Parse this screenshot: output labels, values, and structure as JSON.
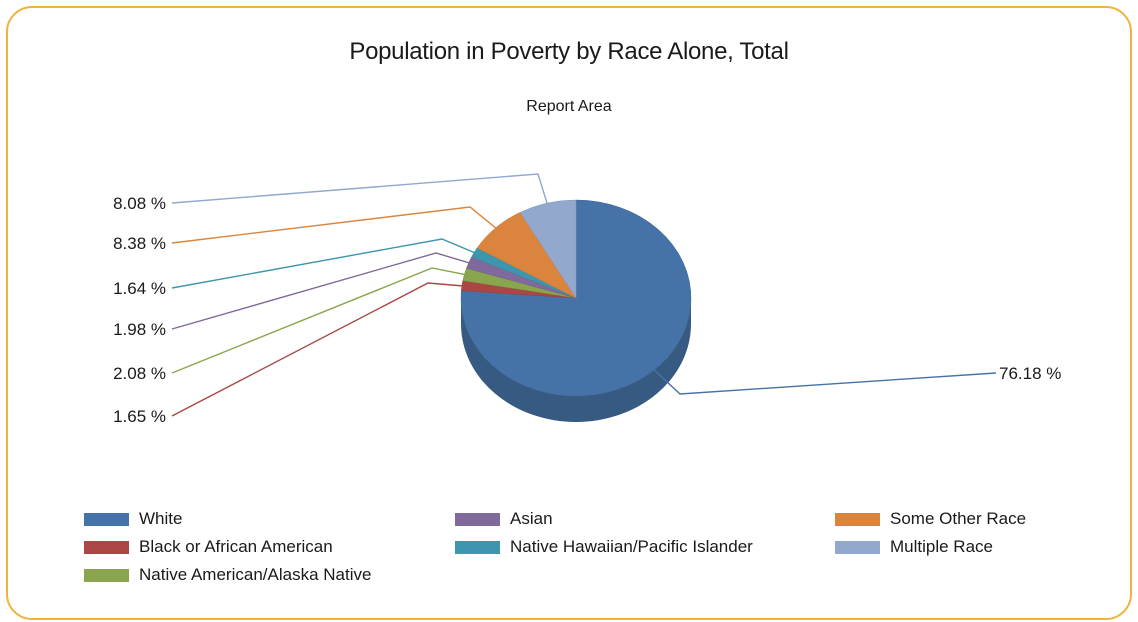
{
  "chart_data": {
    "type": "pie",
    "title": "Population in Poverty by Race Alone, Total",
    "subtitle": "Report Area",
    "slices": [
      {
        "name": "White",
        "value": 76.18,
        "label": "76.18 %",
        "color": "#4573a7"
      },
      {
        "name": "Black or African American",
        "value": 1.65,
        "label": "1.65 %",
        "color": "#aa4643"
      },
      {
        "name": "Native American/Alaska Native",
        "value": 2.08,
        "label": "2.08 %",
        "color": "#89a54e"
      },
      {
        "name": "Asian",
        "value": 1.98,
        "label": "1.98 %",
        "color": "#80699b"
      },
      {
        "name": "Native Hawaiian/Pacific Islander",
        "value": 1.64,
        "label": "1.64 %",
        "color": "#3d96ae"
      },
      {
        "name": "Some Other Race",
        "value": 8.38,
        "label": "8.38 %",
        "color": "#db843d"
      },
      {
        "name": "Multiple Race",
        "value": 8.08,
        "label": "8.08 %",
        "color": "#92a8cd"
      }
    ],
    "legend_order": [
      "White",
      "Black or African American",
      "Native American/Alaska Native",
      "Asian",
      "Native Hawaiian/Pacific Islander",
      "Multiple Race",
      "Some Other Race"
    ],
    "legend_position": "bottom"
  }
}
